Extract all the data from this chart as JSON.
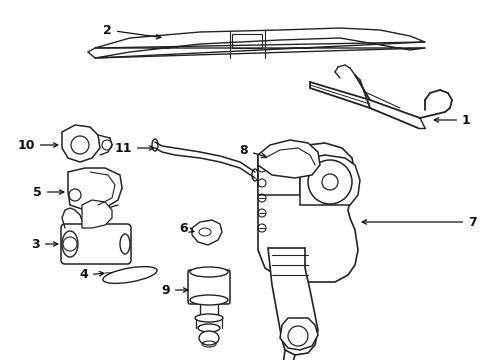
{
  "background_color": "#ffffff",
  "line_color": "#222222",
  "text_color": "#111111",
  "figsize": [
    4.89,
    3.6
  ],
  "dpi": 100
}
